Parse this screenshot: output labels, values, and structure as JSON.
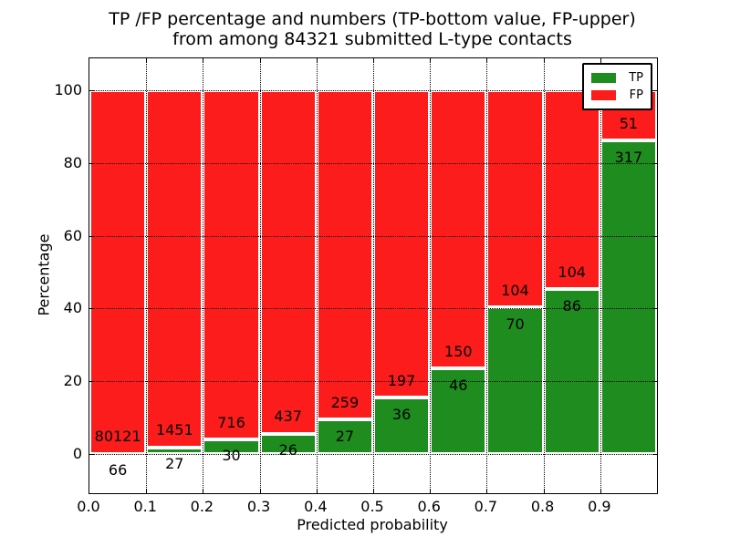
{
  "title_line1": "TP /FP percentage and numbers (TP-bottom value, FP-upper)",
  "title_line2": "from among 84321 submitted L-type contacts",
  "chart_data": {
    "type": "bar",
    "stacked": true,
    "stack_mode": "percentage",
    "title": "TP /FP percentage and numbers (TP-bottom value, FP-upper) from among 84321 submitted L-type contacts",
    "xlabel": "Predicted probability",
    "ylabel": "Percentage",
    "bin_width": 0.1,
    "categories": [
      "0.0",
      "0.1",
      "0.2",
      "0.3",
      "0.4",
      "0.5",
      "0.6",
      "0.7",
      "0.8",
      "0.9"
    ],
    "series": [
      {
        "name": "TP",
        "color": "#1e8c1e",
        "counts": [
          66,
          27,
          30,
          26,
          27,
          36,
          46,
          70,
          86,
          317
        ]
      },
      {
        "name": "FP",
        "color": "#fc1c1c",
        "counts": [
          80121,
          1451,
          716,
          437,
          259,
          197,
          150,
          104,
          104,
          51
        ]
      }
    ],
    "tp_percentages": [
      0.08,
      1.83,
      4.02,
      5.62,
      9.44,
      15.45,
      23.47,
      40.23,
      45.26,
      86.14
    ],
    "xticks": [
      "0.0",
      "0.1",
      "0.2",
      "0.3",
      "0.4",
      "0.5",
      "0.6",
      "0.7",
      "0.8",
      "0.9"
    ],
    "yticks": [
      0,
      20,
      40,
      60,
      80,
      100
    ],
    "xlim": [
      0.0,
      1.0
    ],
    "ylim": [
      -10.8,
      108.8
    ],
    "grid": "dotted",
    "bar_edge_color": "#ffffff",
    "legend_position": "upper right",
    "annotation_note": "FP count above boundary, TP count below boundary"
  },
  "legend": {
    "items": [
      {
        "label": "TP",
        "color": "#1e8c1e"
      },
      {
        "label": "FP",
        "color": "#fc1c1c"
      }
    ]
  }
}
